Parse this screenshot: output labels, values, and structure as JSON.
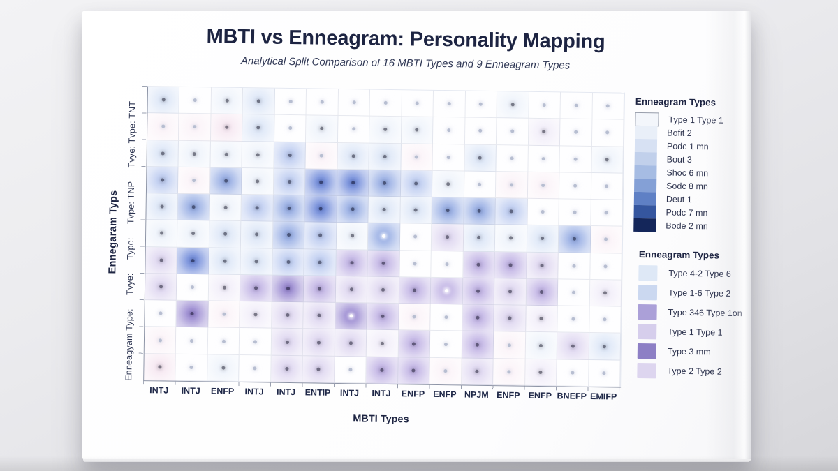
{
  "chart_data": {
    "type": "heatmap",
    "title": "MBTI vs Enneagram: Personality Mapping",
    "subtitle": "Analytical Split Comparison of 16 MBTI Types and 9 Enneagram Types",
    "xlabel": "MBTI Types",
    "ylabel": "Ennegaram Typs",
    "x_categories": [
      "INTJ",
      "INTJ",
      "ENFP",
      "INTJ",
      "INTJ",
      "ENTIP",
      "INTJ",
      "INTJ",
      "ENFP",
      "ENFP",
      "NPJM",
      "ENFP",
      "ENFP",
      "BNEFP",
      "EMIFP"
    ],
    "y_tick_segments": [
      "Enneagyam Type:",
      "Tvye:",
      "Type:",
      "Tvpe: TNP",
      "Tvye: Tvpe: TNT"
    ],
    "grid": {
      "columns": 15,
      "rows": 11
    },
    "palette": {
      "W": "#fdfdff",
      "B1": "#eef3fb",
      "B2": "#dce6f7",
      "B3": "#bccbf0",
      "B4": "#94abe3",
      "B5": "#6d88d9",
      "P1": "#f1edf9",
      "P2": "#ded6f0",
      "P3": "#c0b2e4",
      "P4": "#9685cf",
      "K1": "#fbf3f8",
      "K2": "#f6e7f1"
    },
    "cells": [
      "B2 W B1 B2 W W W W W W W B1 W W W",
      "K1 K1 K2 B2 W B1 W B1 B1 W W W P1 W W",
      "B2 B1 B1 B1 B3 K1 B2 B2 K1 W B2 W W W B1",
      "B3 K1 B4 B1 B3 B5 B5 B4 B3 B1 W K1 K1 W W",
      "B2 B4 B1 B3 B4 B5 B4 B2 B2 B4 B4 B3 W W W",
      "B1 B1 B2 B2 B4 B3 B1 B4 W P2 B2 B1 B2 B4 K1",
      "P2 B5 B2 B2 B3 B3 P3 P3 W W P3 P3 P2 W W",
      "P2 W P1 P3 P4 P3 P2 P2 P3 P3 P3 P2 P3 W P1",
      "W P4 K1 P1 P2 P2 P4 P3 K1 W P3 P2 P1 W W",
      "K1 W W W P2 P2 P2 P1 P3 W P3 K1 B1 P2 B2",
      "K2 W B1 W P2 P2 W P3 P3 K1 P2 K1 P1 W W"
    ],
    "white_dot_cells": [
      [
        6,
        8
      ],
      [
        8,
        10
      ],
      [
        9,
        7
      ]
    ]
  },
  "legend_gradient": {
    "title": "Enneagram Types",
    "items": [
      {
        "label": "Type 1 Type 1",
        "color": "#f3f6fb"
      },
      {
        "label": "Bofit 2",
        "color": "#e9eff8"
      },
      {
        "label": "Podc 1 mn",
        "color": "#d7e1f3"
      },
      {
        "label": "Bout 3",
        "color": "#c1d0eb"
      },
      {
        "label": "Shoc 6 mn",
        "color": "#a6bce3"
      },
      {
        "label": "Sodc 8 mn",
        "color": "#84a0d6"
      },
      {
        "label": "Deut 1",
        "color": "#5f80c5"
      },
      {
        "label": "Podc 7 mn",
        "color": "#35569f"
      },
      {
        "label": "Bode 2 mn",
        "color": "#14265a"
      }
    ]
  },
  "legend_discrete": {
    "title": "Enneagram Types",
    "items": [
      {
        "label": "Type 4-2 Type 6",
        "color": "#dee8f6"
      },
      {
        "label": "Type 1-6 Type 2",
        "color": "#cbd8f0"
      },
      {
        "label": "Type 346 Type 1on",
        "color": "#aba0d8"
      },
      {
        "label": "Type 1  Type 1",
        "color": "#d6ceec"
      },
      {
        "label": "Type 3 mm",
        "color": "#8d7fc5"
      },
      {
        "label": "Type 2 Type 2",
        "color": "#ddd5ef"
      }
    ]
  }
}
